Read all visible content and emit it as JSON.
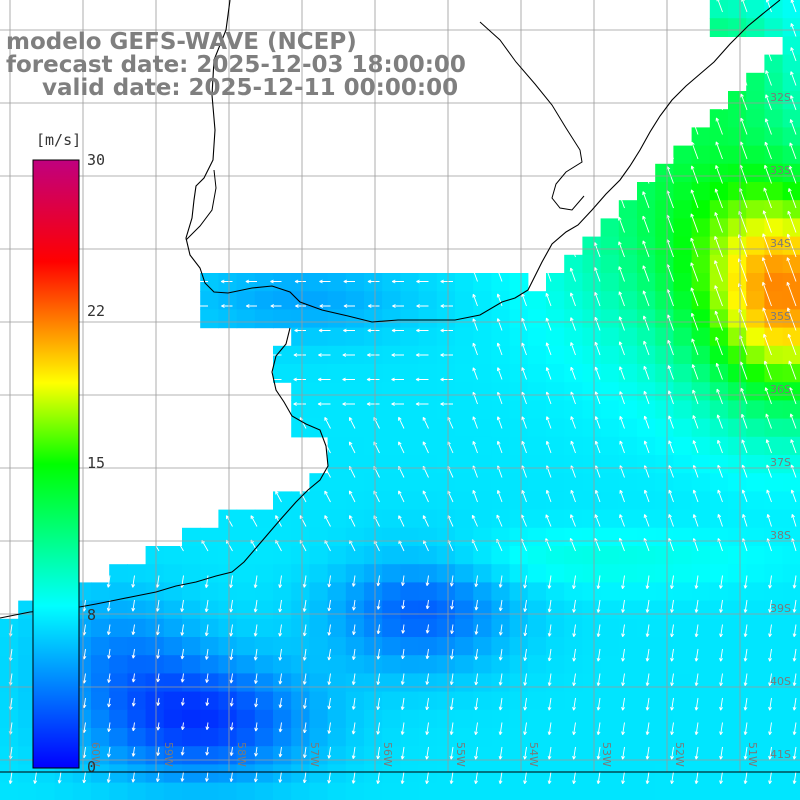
{
  "titles": {
    "model": "modelo GEFS-WAVE (NCEP)",
    "forecast": "forecast date: 2025-12-03 18:00:00",
    "valid": "valid date: 2025-12-11 00:00:00"
  },
  "colorbar": {
    "unit": "[m/s]",
    "labels": [
      "30",
      "22",
      "15",
      "8",
      "0"
    ],
    "min": 0,
    "max": 30,
    "stops": [
      {
        "value": 0,
        "color": "#0000ff"
      },
      {
        "value": 8,
        "color": "#00ffff"
      },
      {
        "value": 15,
        "color": "#00ff00"
      },
      {
        "value": 19,
        "color": "#ffff00"
      },
      {
        "value": 22,
        "color": "#ff8000"
      },
      {
        "value": 25,
        "color": "#ff0000"
      },
      {
        "value": 30,
        "color": "#c0007f"
      }
    ]
  },
  "lat_labels": [
    "32S",
    "33S",
    "34S",
    "35S",
    "36S",
    "37S",
    "38S",
    "39S",
    "40S",
    "41S"
  ],
  "lon_labels": [
    "60W",
    "59W",
    "58W",
    "57W",
    "56W",
    "55W",
    "54W",
    "53W",
    "52W",
    "51W"
  ],
  "colors": {
    "grid": "#9a9a9a",
    "coast": "#000000",
    "land": "#ffffff",
    "arrow": "#ffffff",
    "title": "#7f7f7f"
  }
}
